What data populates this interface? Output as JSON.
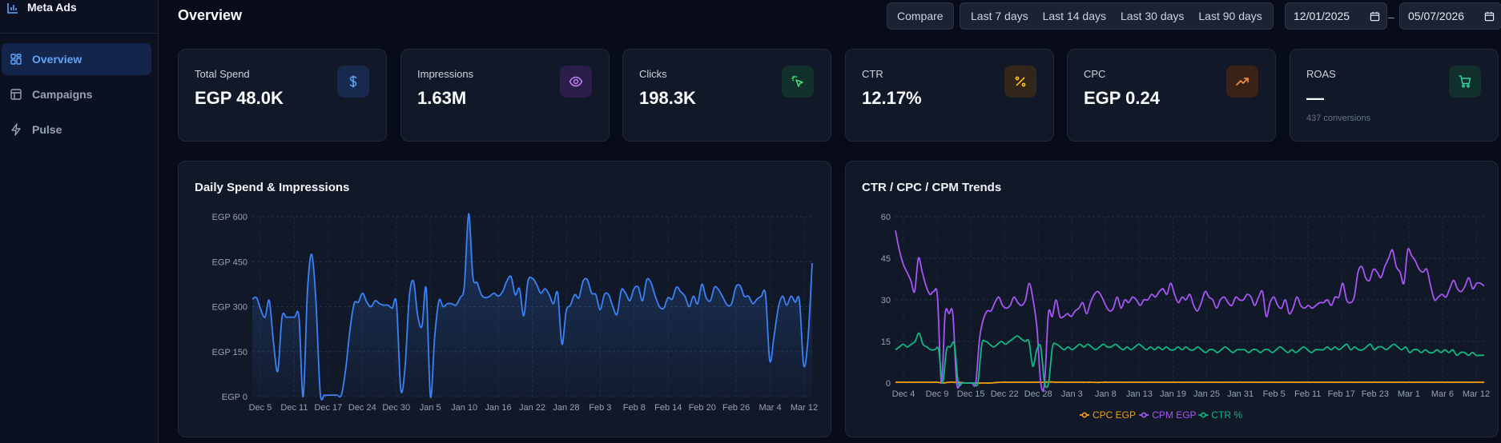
{
  "app": {
    "brand": "Meta Ads"
  },
  "sidebar": {
    "items": [
      {
        "label": "Overview",
        "icon": "grid-icon",
        "active": true
      },
      {
        "label": "Campaigns",
        "icon": "table-icon",
        "active": false
      },
      {
        "label": "Pulse",
        "icon": "bolt-icon",
        "active": false
      }
    ]
  },
  "header": {
    "title": "Overview",
    "compare_label": "Compare",
    "ranges": [
      "Last 7 days",
      "Last 14 days",
      "Last 30 days",
      "Last 90 days"
    ],
    "date_from": "12/01/2025",
    "date_to": "05/07/2026",
    "date_sep": "–"
  },
  "kpis": [
    {
      "label": "Total Spend",
      "value": "EGP 48.0K",
      "sub": "",
      "icon": "dollar-icon",
      "color": "#60a5fa",
      "bg": "#172a4d"
    },
    {
      "label": "Impressions",
      "value": "1.63M",
      "sub": "",
      "icon": "eye-icon",
      "color": "#c084fc",
      "bg": "#2a1d48"
    },
    {
      "label": "Clicks",
      "value": "198.3K",
      "sub": "",
      "icon": "cursor-click-icon",
      "color": "#4ade80",
      "bg": "#12302a"
    },
    {
      "label": "CTR",
      "value": "12.17%",
      "sub": "",
      "icon": "percent-icon",
      "color": "#fbbf24",
      "bg": "#33261a"
    },
    {
      "label": "CPC",
      "value": "EGP 0.24",
      "sub": "",
      "icon": "trending-up-icon",
      "color": "#fb923c",
      "bg": "#3a2218"
    },
    {
      "label": "ROAS",
      "value": "—",
      "sub": "437 conversions",
      "icon": "cart-icon",
      "color": "#34d399",
      "bg": "#11302c"
    }
  ],
  "charts": {
    "spend_title": "Daily Spend & Impressions",
    "trends_title": "CTR / CPC / CPM Trends"
  },
  "chart_data": [
    {
      "type": "area",
      "title": "Daily Spend & Impressions",
      "yticks": [
        "EGP 0",
        "EGP 150",
        "EGP 300",
        "EGP 450",
        "EGP 600"
      ],
      "ylim": [
        0,
        600
      ],
      "xticks": [
        "Dec 5",
        "Dec 11",
        "Dec 17",
        "Dec 24",
        "Dec 30",
        "Jan 5",
        "Jan 10",
        "Jan 16",
        "Jan 22",
        "Jan 28",
        "Feb 3",
        "Feb 8",
        "Feb 14",
        "Feb 20",
        "Feb 26",
        "Mar 4",
        "Mar 12"
      ],
      "color": "#3b82f6",
      "series": [
        {
          "values": [
            325,
            330,
            290,
            265,
            320,
            180,
            85,
            265,
            265,
            265,
            265,
            265,
            0,
            350,
            475,
            320,
            15,
            5,
            5,
            5,
            5,
            5,
            90,
            220,
            310,
            315,
            345,
            315,
            300,
            320,
            310,
            305,
            305,
            295,
            310,
            25,
            95,
            330,
            385,
            270,
            235,
            360,
            0,
            200,
            320,
            300,
            310,
            310,
            305,
            330,
            370,
            610,
            400,
            380,
            340,
            330,
            335,
            345,
            335,
            350,
            385,
            400,
            340,
            360,
            270,
            385,
            395,
            375,
            345,
            360,
            340,
            310,
            345,
            175,
            285,
            305,
            340,
            330,
            385,
            390,
            345,
            340,
            290,
            340,
            340,
            300,
            275,
            355,
            345,
            320,
            360,
            365,
            320,
            390,
            380,
            335,
            300,
            295,
            330,
            325,
            365,
            350,
            335,
            300,
            335,
            310,
            375,
            330,
            320,
            365,
            355,
            330,
            305,
            310,
            365,
            370,
            335,
            335,
            310,
            325,
            335,
            340,
            120,
            200,
            295,
            335,
            305,
            335,
            315,
            320,
            105,
            190,
            445
          ]
        }
      ]
    },
    {
      "type": "line",
      "title": "CTR / CPC / CPM Trends",
      "ylim": [
        0,
        60
      ],
      "yticks": [
        "0",
        "15",
        "30",
        "45",
        "60"
      ],
      "xticks": [
        "Dec 4",
        "Dec 9",
        "Dec 15",
        "Dec 22",
        "Dec 28",
        "Jan 3",
        "Jan 8",
        "Jan 13",
        "Jan 19",
        "Jan 25",
        "Jan 31",
        "Feb 5",
        "Feb 11",
        "Feb 17",
        "Feb 23",
        "Mar 1",
        "Mar 6",
        "Mar 12"
      ],
      "series": [
        {
          "name": "CPC EGP",
          "color": "#f59e0b",
          "values": [
            0.3,
            0.3,
            0.3,
            0.3,
            0.3,
            0.3,
            0.3,
            0.3,
            0,
            0.3,
            0.3,
            0.2,
            0,
            0,
            0,
            0,
            0,
            0.2,
            0.3,
            0.3,
            0.3,
            0.3,
            0.3,
            0.3,
            0.3,
            0.3,
            0.4,
            0.3,
            0.3,
            0.3,
            0.3,
            0.3,
            0.3,
            0.3,
            0.2,
            0.3,
            0.3,
            0.3,
            0.3,
            0.3,
            0.3,
            0.3,
            0.3,
            0.3,
            0.3,
            0.3,
            0.3,
            0.3,
            0.3,
            0.3,
            0.3,
            0.3,
            0.3,
            0.3,
            0.3,
            0.3,
            0.3,
            0.3,
            0.3,
            0.3,
            0.3,
            0.3,
            0.3,
            0.3,
            0.3,
            0.3,
            0.3,
            0.3,
            0.3,
            0.3,
            0.3,
            0.3,
            0.3,
            0.3,
            0.3,
            0.3,
            0.3,
            0.3,
            0.3,
            0.3,
            0.3,
            0.3,
            0.3,
            0.3,
            0.3,
            0.3,
            0.3,
            0.3,
            0.3,
            0.3,
            0.3,
            0.3,
            0.3,
            0.3,
            0.3,
            0.3,
            0.3,
            0.3,
            0.3,
            0.3
          ]
        },
        {
          "name": "CPM EGP",
          "color": "#a855f7",
          "values": [
            55,
            48,
            43,
            40,
            37,
            33,
            45,
            40,
            35,
            32,
            33,
            31,
            0,
            25,
            25,
            25,
            0,
            0,
            0,
            0,
            0,
            0,
            16,
            23,
            26,
            26,
            29,
            31,
            28,
            27,
            28,
            31,
            29,
            28,
            30,
            36,
            30,
            20,
            0,
            0,
            25,
            24,
            30,
            24,
            24,
            25,
            24,
            26,
            27,
            29,
            25,
            29,
            32,
            33,
            31,
            28,
            26,
            27,
            31,
            27,
            30,
            29,
            31,
            30,
            28,
            30,
            30,
            32,
            31,
            33,
            34,
            32,
            36,
            32,
            29,
            31,
            30,
            32,
            28,
            26,
            29,
            33,
            31,
            30,
            27,
            30,
            31,
            29,
            28,
            31,
            30,
            30,
            32,
            31,
            28,
            31,
            33,
            24,
            29,
            31,
            28,
            27,
            30,
            25,
            27,
            31,
            28,
            27,
            28,
            27,
            28,
            29,
            29,
            30,
            28,
            31,
            31,
            36,
            30,
            29,
            31,
            40,
            42,
            38,
            37,
            41,
            40,
            38,
            42,
            45,
            48,
            42,
            40,
            36,
            48,
            46,
            44,
            41,
            40,
            41,
            35,
            30,
            31,
            32,
            31,
            34,
            37,
            34,
            33,
            35,
            38,
            34,
            36,
            36,
            35
          ]
        },
        {
          "name": "CTR %",
          "color": "#10b981",
          "values": [
            12,
            13,
            14,
            13,
            14,
            15,
            18,
            14,
            13,
            12,
            12,
            12,
            0,
            12,
            13,
            14,
            0,
            0,
            0,
            0,
            0,
            0,
            14,
            15,
            14,
            13,
            14,
            15,
            14,
            15,
            16,
            17,
            16,
            15,
            15,
            6,
            12,
            13,
            0,
            0,
            13,
            14,
            13,
            12,
            13,
            12,
            13,
            14,
            13,
            14,
            13,
            12,
            13,
            14,
            13,
            13,
            14,
            13,
            12,
            13,
            12,
            13,
            14,
            13,
            12,
            13,
            12,
            13,
            12,
            13,
            12,
            12,
            13,
            12,
            13,
            12,
            12,
            13,
            12,
            11,
            12,
            12,
            11,
            12,
            13,
            12,
            11,
            12,
            12,
            12,
            11,
            12,
            12,
            11,
            12,
            12,
            11,
            12,
            13,
            12,
            11,
            12,
            11,
            12,
            13,
            12,
            11,
            12,
            12,
            12,
            13,
            12,
            13,
            12,
            13,
            14,
            12,
            13,
            12,
            12,
            13,
            14,
            12,
            13,
            13,
            12,
            13,
            14,
            13,
            12,
            13,
            11,
            12,
            12,
            11,
            12,
            11,
            11,
            12,
            11,
            12,
            11,
            12,
            10,
            11,
            11,
            10,
            11,
            10,
            10,
            10
          ]
        }
      ]
    }
  ]
}
